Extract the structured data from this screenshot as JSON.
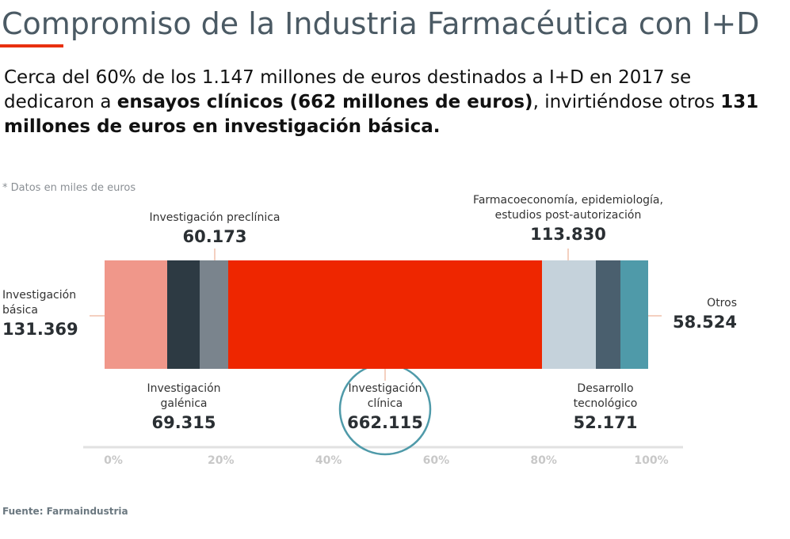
{
  "chart_data": {
    "type": "bar",
    "stacked": true,
    "orientation": "horizontal",
    "title": "Compromiso de la Industria Farmacéutica con I+D",
    "subtitle": [
      "Cerca del 60% de los 1.147 millones de euros destinados a I+D en 2017 se dedicaron a ",
      "ensayos clínicos (662 millones de euros)",
      ", invirtiéndose otros ",
      "131 millones de euros  en investigación básica."
    ],
    "note": "* Datos en miles de euros",
    "source": "Fuente: Farmaindustria",
    "categories": [
      "Investigación básica",
      "Investigación galénica",
      "Investigación preclínica",
      "Investigación clínica",
      "Farmacoeconomía, epidemiología, estudios post-autorización",
      "Desarrollo tecnológico",
      "Otros"
    ],
    "values": [
      131369,
      69315,
      60173,
      662115,
      113830,
      52171,
      58524
    ],
    "value_labels": [
      "131.369",
      "69.315",
      "60.173",
      "662.115",
      "113.830",
      "52.171",
      "58.524"
    ],
    "colors": [
      "#f0978a",
      "#2d3a43",
      "#7a848d",
      "#ee2600",
      "#c5d2db",
      "#4a5f6e",
      "#4f9aa9"
    ],
    "xlim": [
      0,
      100
    ],
    "xticks": [
      {
        "value": 0,
        "label": "0%"
      },
      {
        "value": 20,
        "label": "20%"
      },
      {
        "value": 40,
        "label": "40%"
      },
      {
        "value": 60,
        "label": "60%"
      },
      {
        "value": 80,
        "label": "80%"
      },
      {
        "value": 100,
        "label": "100%"
      }
    ]
  }
}
